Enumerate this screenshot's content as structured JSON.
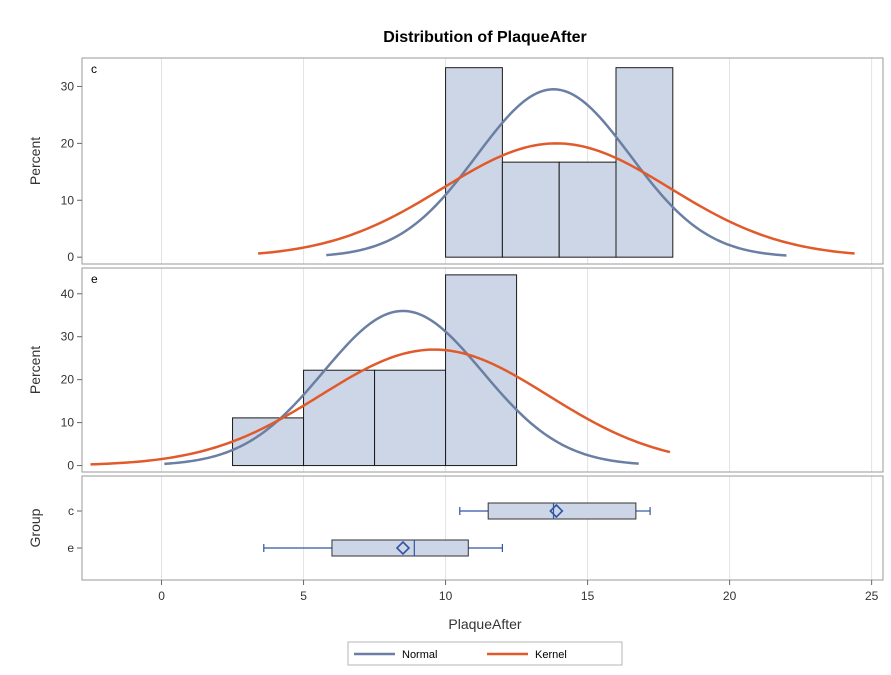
{
  "chart_data": {
    "type": "histogram",
    "title": "Distribution of PlaqueAfter",
    "xlabel": "PlaqueAfter",
    "xlim": [
      -2.8,
      25.4
    ],
    "x_ticks": [
      0,
      5,
      10,
      15,
      20,
      25
    ],
    "panels": [
      {
        "label": "c",
        "ylabel": "Percent",
        "ylim": [
          -1.2,
          35
        ],
        "y_ticks": [
          0,
          10,
          20,
          30
        ],
        "bins": [
          {
            "x0": 10,
            "x1": 12,
            "value": 33.3
          },
          {
            "x0": 12,
            "x1": 14,
            "value": 16.7
          },
          {
            "x0": 14,
            "x1": 16,
            "value": 16.7
          },
          {
            "x0": 16,
            "x1": 18,
            "value": 33.3
          }
        ],
        "normal": {
          "mean": 13.8,
          "sd": 2.7,
          "x_range": [
            5.8,
            22.0
          ],
          "peak": 29.5
        },
        "kernel": {
          "mean": 13.9,
          "sd": 4.0,
          "x_range": [
            3.4,
            24.4
          ],
          "peak": 20
        }
      },
      {
        "label": "e",
        "ylabel": "Percent",
        "ylim": [
          -1.5,
          46
        ],
        "y_ticks": [
          0,
          10,
          20,
          30,
          40
        ],
        "bins": [
          {
            "x0": 2.5,
            "x1": 5,
            "value": 11.1
          },
          {
            "x0": 5,
            "x1": 7.5,
            "value": 22.2
          },
          {
            "x0": 7.5,
            "x1": 10,
            "value": 22.2
          },
          {
            "x0": 10,
            "x1": 12.5,
            "value": 44.4
          }
        ],
        "normal": {
          "mean": 8.5,
          "sd": 2.8,
          "x_range": [
            0.1,
            16.8
          ],
          "peak": 36
        },
        "kernel": {
          "mean": 9.6,
          "sd": 4.0,
          "x_range": [
            -2.5,
            17.9
          ],
          "peak": 27
        }
      }
    ],
    "boxplot": {
      "ylabel": "Group",
      "groups": [
        {
          "name": "c",
          "min": 10.5,
          "q1": 11.5,
          "median": 13.8,
          "q3": 16.7,
          "max": 17.2,
          "mean": 13.9
        },
        {
          "name": "e",
          "min": 3.6,
          "q1": 6.0,
          "median": 8.9,
          "q3": 10.8,
          "max": 12.0,
          "mean": 8.5
        }
      ]
    },
    "legend": {
      "placement": "bottom",
      "entries": [
        {
          "label": "Normal",
          "color": "#6a7fa3"
        },
        {
          "label": "Kernel",
          "color": "#e05a2b"
        }
      ]
    },
    "colors": {
      "bar_fill": "#cdd6e6",
      "bar_stroke": "#1a1a1a",
      "normal": "#6a7fa3",
      "kernel": "#e05a2b",
      "box_stroke": "#2f55a4",
      "grid": "#e2e2e2"
    }
  }
}
